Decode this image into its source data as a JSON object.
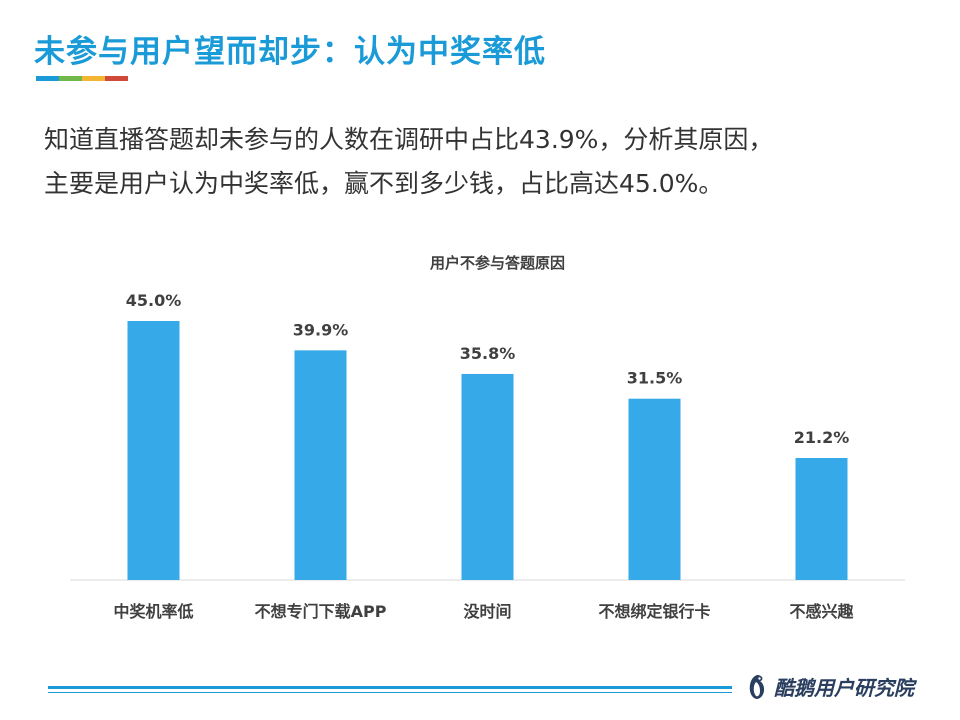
{
  "page": {
    "title": "未参与用户望而却步：认为中奖率低",
    "title_bar_colors": [
      "#1a9bd7",
      "#70b84a",
      "#f2b632",
      "#d04a3c"
    ],
    "description_line1": "知道直播答题却未参与的人数在调研中占比43.9%，分析其原因，",
    "description_line2": "主要是用户认为中奖率低，赢不到多少钱，占比高达45.0%。",
    "brand": "酷鹅用户研究院"
  },
  "colors": {
    "accent": "#1a9bd7",
    "bar": "#36a9e9",
    "text": "#333333",
    "axis": "#d9d9d9"
  },
  "chart_data": {
    "type": "bar",
    "title": "用户不参与答题原因",
    "categories": [
      "中奖机率低",
      "不想专门下载APP",
      "没时间",
      "不想绑定银行卡",
      "不感兴趣"
    ],
    "values": [
      45.0,
      39.9,
      35.8,
      31.5,
      21.2
    ],
    "value_suffix": "%",
    "ylim": [
      0,
      50
    ],
    "xlabel": "",
    "ylabel": "",
    "grid": false,
    "legend": "none"
  }
}
